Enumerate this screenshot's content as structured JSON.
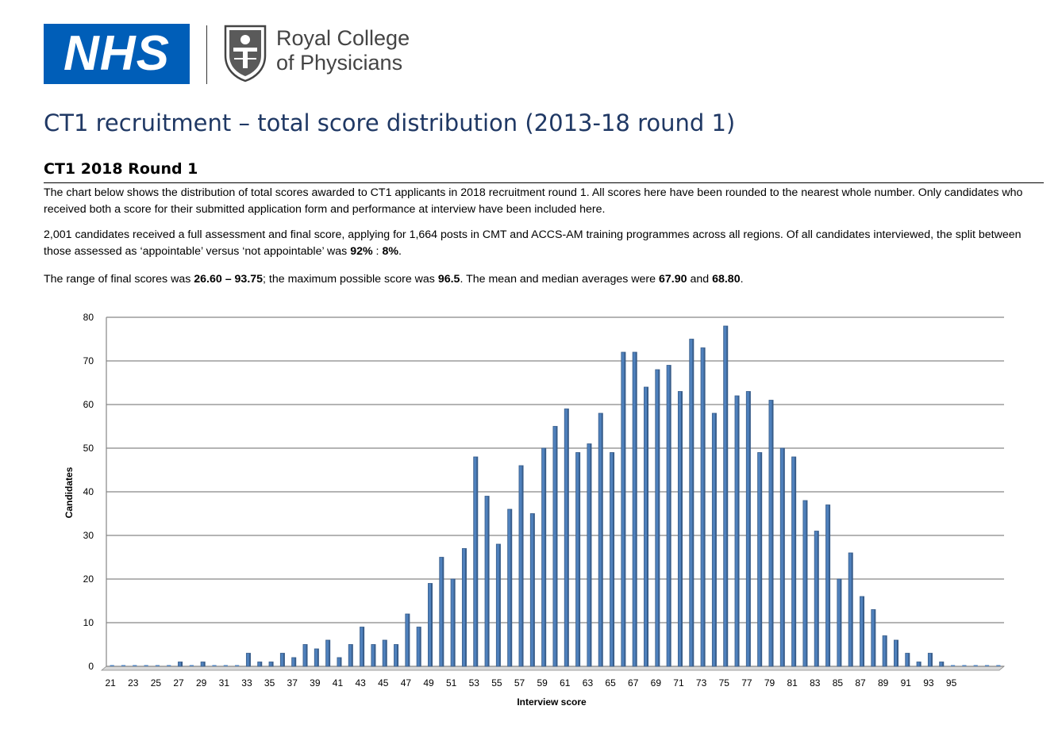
{
  "header": {
    "nhs_logo_text": "NHS",
    "rcp_line1": "Royal College",
    "rcp_line2": "of Physicians"
  },
  "page": {
    "title": "CT1 recruitment – total score distribution (2013-18 round 1)",
    "section_heading": "CT1 2018 Round 1",
    "para1": "The chart below shows the distribution of total scores awarded to CT1 applicants in 2018 recruitment round 1. All scores here have been rounded to the nearest whole number. Only candidates who received both a score for their submitted application form and performance at interview have been included here.",
    "para2_a": "2,001 candidates received a full assessment and final score, applying for 1,664 posts in CMT and ACCS-AM training programmes across all regions. Of all candidates interviewed, the split between those assessed as ‘appointable’ versus ‘not appointable’ was ",
    "para2_b": "92%",
    "para2_c": " : ",
    "para2_d": "8%",
    "para2_e": ".",
    "para3_a": "The range of final scores was ",
    "para3_b": "26.60 – 93.75",
    "para3_c": "; the maximum possible score was ",
    "para3_d": "96.5",
    "para3_e": ". The mean and median averages were ",
    "para3_f": "67.90",
    "para3_g": " and ",
    "para3_h": "68.80",
    "para3_i": "."
  },
  "colors": {
    "bar": "#4f81bd",
    "bar_dark": "#385d8a",
    "grid": "#868686",
    "title": "#1f3864",
    "nhs_blue": "#005eb8"
  },
  "chart_data": {
    "type": "bar",
    "xlabel": "Interview score",
    "ylabel": "Candidates",
    "ylim": [
      0,
      80
    ],
    "yticks": [
      0,
      10,
      20,
      30,
      40,
      50,
      60,
      70,
      80
    ],
    "grid": true,
    "x_range": [
      21,
      99
    ],
    "x_tick_labels": [
      "21",
      "23",
      "25",
      "27",
      "29",
      "31",
      "33",
      "35",
      "37",
      "39",
      "41",
      "43",
      "45",
      "47",
      "49",
      "51",
      "53",
      "55",
      "57",
      "59",
      "61",
      "63",
      "65",
      "67",
      "69",
      "71",
      "73",
      "75",
      "77",
      "79",
      "81",
      "83",
      "85",
      "87",
      "89",
      "91",
      "93",
      "95"
    ],
    "categories": [
      21,
      22,
      23,
      24,
      25,
      26,
      27,
      28,
      29,
      30,
      31,
      32,
      33,
      34,
      35,
      36,
      37,
      38,
      39,
      40,
      41,
      42,
      43,
      44,
      45,
      46,
      47,
      48,
      49,
      50,
      51,
      52,
      53,
      54,
      55,
      56,
      57,
      58,
      59,
      60,
      61,
      62,
      63,
      64,
      65,
      66,
      67,
      68,
      69,
      70,
      71,
      72,
      73,
      74,
      75,
      76,
      77,
      78,
      79,
      80,
      81,
      82,
      83,
      84,
      85,
      86,
      87,
      88,
      89,
      90,
      91,
      92,
      93,
      94,
      95,
      96,
      97,
      98,
      99
    ],
    "values": [
      0,
      0,
      0,
      0,
      0,
      0,
      1,
      0,
      1,
      0,
      0,
      0,
      3,
      1,
      1,
      3,
      2,
      5,
      4,
      6,
      2,
      5,
      9,
      5,
      6,
      5,
      12,
      9,
      19,
      25,
      20,
      27,
      48,
      39,
      28,
      36,
      46,
      35,
      50,
      55,
      59,
      49,
      51,
      58,
      49,
      72,
      72,
      64,
      68,
      69,
      63,
      75,
      73,
      58,
      78,
      62,
      63,
      49,
      61,
      50,
      48,
      38,
      31,
      37,
      20,
      26,
      16,
      13,
      7,
      6,
      3,
      1,
      3,
      1,
      0,
      0,
      0,
      0,
      0
    ]
  }
}
